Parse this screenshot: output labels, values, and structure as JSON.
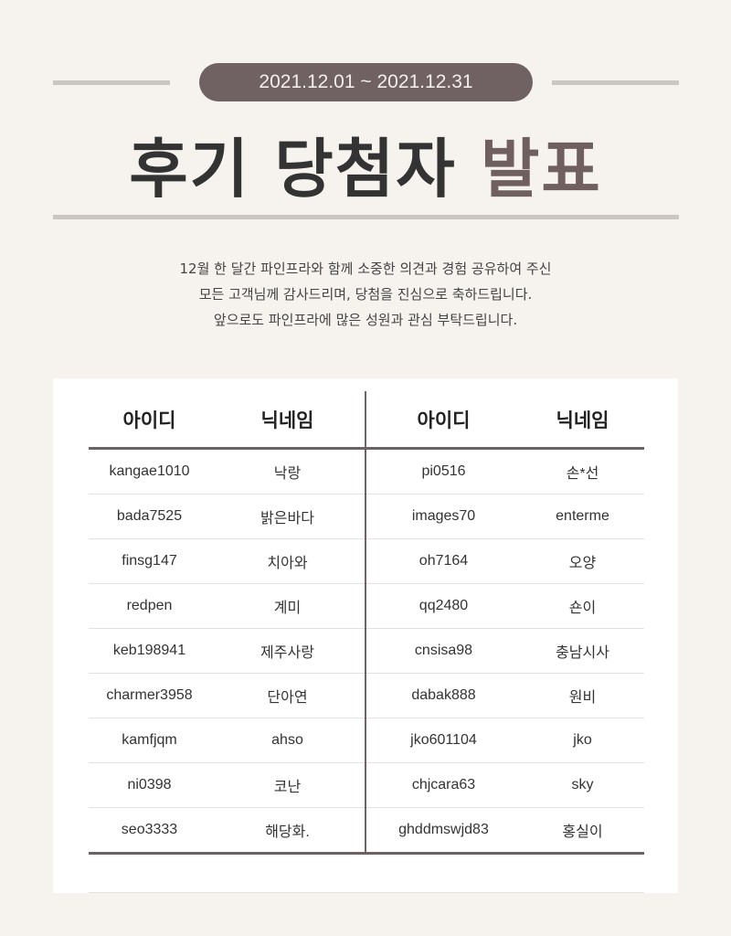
{
  "period": "2021.12.01 ~ 2021.12.31",
  "title": {
    "main": "후기 당첨자",
    "accent": "발표"
  },
  "colors": {
    "background": "#f6f2ee",
    "accent": "#6f5f5f",
    "pill": "#706262"
  },
  "description": [
    "12월 한 달간 파인프라와 함께 소중한 의견과 경험 공유하여 주신",
    "모든 고객님께 감사드리며, 당첨을 진심으로 축하드립니다.",
    "앞으로도 파인프라에 많은 성원과 관심 부탁드립니다."
  ],
  "table": {
    "headers": [
      "아이디",
      "닉네임",
      "아이디",
      "닉네임"
    ],
    "rows": [
      [
        "kangae1010",
        "낙랑",
        "pi0516",
        "손*선"
      ],
      [
        "bada7525",
        "밝은바다",
        "images70",
        "enterme"
      ],
      [
        "finsg147",
        "치아와",
        "oh7164",
        "오양"
      ],
      [
        "redpen",
        "계미",
        "qq2480",
        "숀이"
      ],
      [
        "keb198941",
        "제주사랑",
        "cnsisa98",
        "충남시사"
      ],
      [
        "charmer3958",
        "단아연",
        "dabak888",
        "원비"
      ],
      [
        "kamfjqm",
        "ahso",
        "jko601104",
        "jko"
      ],
      [
        "ni0398",
        "코난",
        "chjcara63",
        "sky"
      ],
      [
        "seo3333",
        "해당화.",
        "ghddmswjd83",
        "홍실이"
      ]
    ]
  }
}
